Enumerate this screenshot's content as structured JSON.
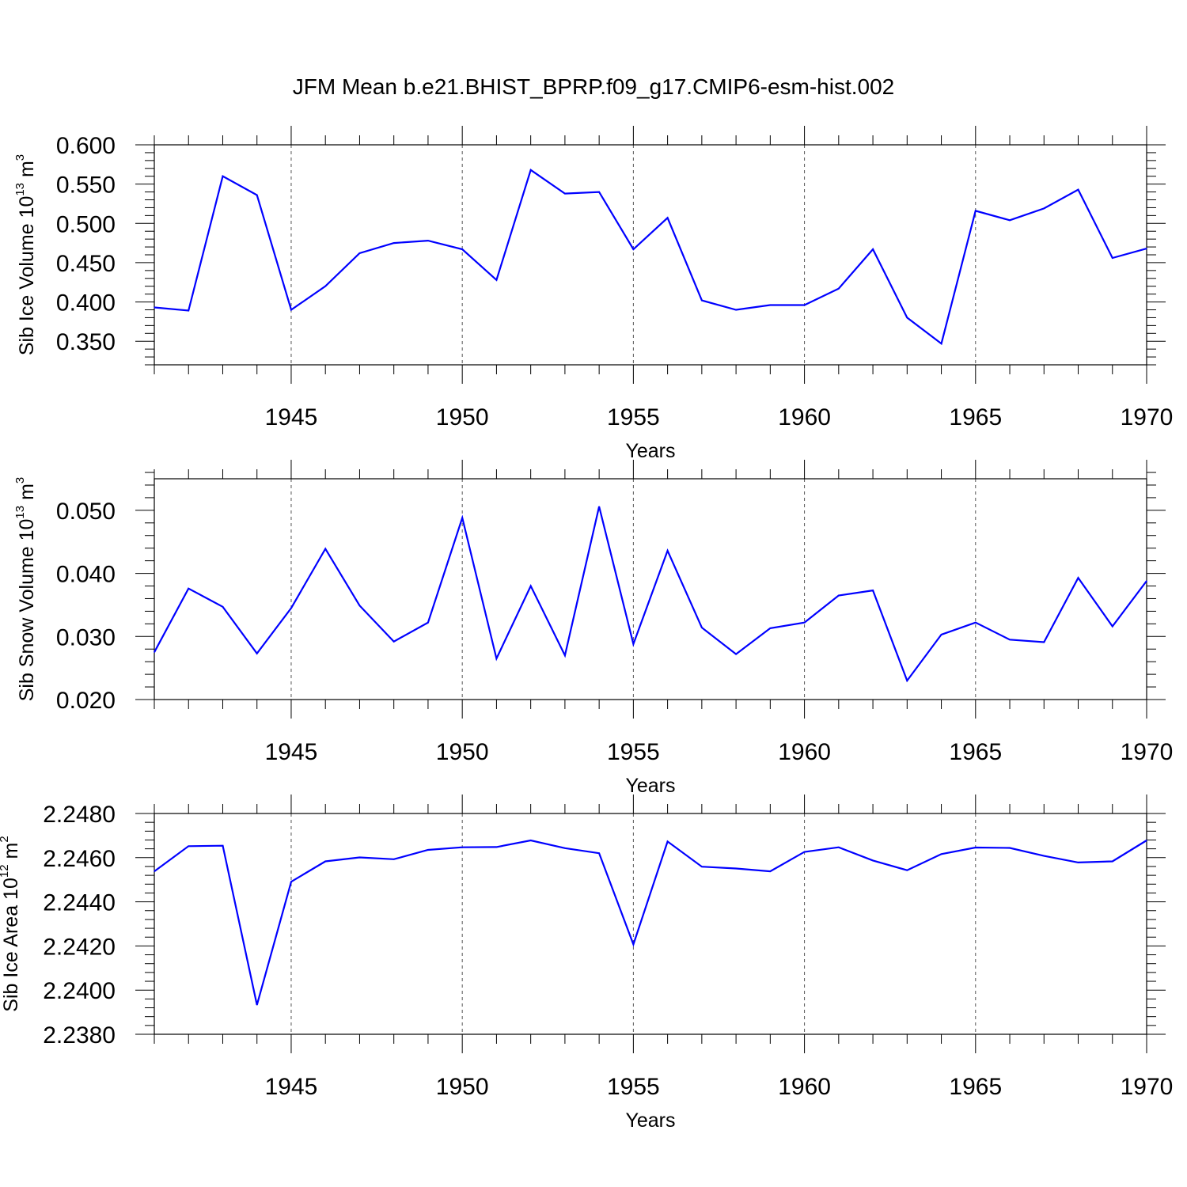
{
  "title": "JFM Mean b.e21.BHIST_BPRP.f09_g17.CMIP6-esm-hist.002",
  "style": {
    "line_color": "#0000ff",
    "grid_color": "#555555",
    "axis_color": "#000000"
  },
  "chart_data": [
    {
      "type": "line",
      "xlabel": "Years",
      "ylabel_parts": [
        "Sib Ice Volume 10",
        "13",
        " m",
        "3"
      ],
      "xlim": [
        1941,
        1970
      ],
      "ylim": [
        0.32,
        0.6
      ],
      "yticks": [
        0.35,
        0.4,
        0.45,
        0.5,
        0.55,
        0.6
      ],
      "ytick_labels": [
        "0.350",
        "0.400",
        "0.450",
        "0.500",
        "0.550",
        "0.600"
      ],
      "yminor_step": 0.01,
      "xticks": [
        1945,
        1950,
        1955,
        1960,
        1965,
        1970
      ],
      "xtick_labels": [
        "1945",
        "1950",
        "1955",
        "1960",
        "1965",
        "1970"
      ],
      "grid": "vertical dashed at major x ticks",
      "series": [
        {
          "x": [
            1941,
            1942,
            1943,
            1944,
            1945,
            1946,
            1947,
            1948,
            1949,
            1950,
            1951,
            1952,
            1953,
            1954,
            1955,
            1956,
            1957,
            1958,
            1959,
            1960,
            1961,
            1962,
            1963,
            1964,
            1965,
            1966,
            1967,
            1968,
            1969,
            1970
          ],
          "values": [
            0.393,
            0.389,
            0.56,
            0.536,
            0.39,
            0.42,
            0.462,
            0.475,
            0.478,
            0.467,
            0.428,
            0.568,
            0.538,
            0.54,
            0.467,
            0.507,
            0.402,
            0.39,
            0.396,
            0.396,
            0.417,
            0.467,
            0.38,
            0.347,
            0.516,
            0.504,
            0.519,
            0.543,
            0.456,
            0.468
          ]
        }
      ]
    },
    {
      "type": "line",
      "xlabel": "Years",
      "ylabel_parts": [
        "Sib Snow Volume 10",
        "13",
        " m",
        "3"
      ],
      "xlim": [
        1941,
        1970
      ],
      "ylim": [
        0.02,
        0.055
      ],
      "yticks": [
        0.02,
        0.03,
        0.04,
        0.05
      ],
      "ytick_labels": [
        "0.020",
        "0.030",
        "0.040",
        "0.050"
      ],
      "yminor_step": 0.002,
      "xticks": [
        1945,
        1950,
        1955,
        1960,
        1965,
        1970
      ],
      "xtick_labels": [
        "1945",
        "1950",
        "1955",
        "1960",
        "1965",
        "1970"
      ],
      "grid": "vertical dashed at major x ticks",
      "series": [
        {
          "x": [
            1941,
            1942,
            1943,
            1944,
            1945,
            1946,
            1947,
            1948,
            1949,
            1950,
            1951,
            1952,
            1953,
            1954,
            1955,
            1956,
            1957,
            1958,
            1959,
            1960,
            1961,
            1962,
            1963,
            1964,
            1965,
            1966,
            1967,
            1968,
            1969,
            1970
          ],
          "values": [
            0.0275,
            0.0376,
            0.0347,
            0.0273,
            0.0345,
            0.0439,
            0.0349,
            0.0292,
            0.0322,
            0.0488,
            0.0265,
            0.038,
            0.027,
            0.0506,
            0.0288,
            0.0436,
            0.0314,
            0.0272,
            0.0313,
            0.0322,
            0.0365,
            0.0373,
            0.023,
            0.0303,
            0.0322,
            0.0295,
            0.0291,
            0.0393,
            0.0316,
            0.0388
          ]
        }
      ]
    },
    {
      "type": "line",
      "xlabel": "Years",
      "ylabel_parts": [
        "Sib Ice Area 10",
        "12",
        " m",
        "2"
      ],
      "xlim": [
        1941,
        1970
      ],
      "ylim": [
        2.238,
        2.248
      ],
      "yticks": [
        2.238,
        2.24,
        2.242,
        2.244,
        2.246,
        2.248
      ],
      "ytick_labels": [
        "2.2380",
        "2.2400",
        "2.2420",
        "2.2440",
        "2.2460",
        "2.2480"
      ],
      "yminor_step": 0.0004,
      "xticks": [
        1945,
        1950,
        1955,
        1960,
        1965,
        1970
      ],
      "xtick_labels": [
        "1945",
        "1950",
        "1955",
        "1960",
        "1965",
        "1970"
      ],
      "grid": "vertical dashed at major x ticks",
      "series": [
        {
          "x": [
            1941,
            1942,
            1943,
            1944,
            1945,
            1946,
            1947,
            1948,
            1949,
            1950,
            1951,
            1952,
            1953,
            1954,
            1955,
            1956,
            1957,
            1958,
            1959,
            1960,
            1961,
            1962,
            1963,
            1964,
            1965,
            1966,
            1967,
            1968,
            1969,
            1970
          ],
          "values": [
            2.24538,
            2.24652,
            2.24654,
            2.23933,
            2.24491,
            2.24583,
            2.24601,
            2.24593,
            2.24635,
            2.24647,
            2.24648,
            2.24678,
            2.24643,
            2.2462,
            2.24207,
            2.24673,
            2.24559,
            2.24551,
            2.24538,
            2.24626,
            2.24647,
            2.24587,
            2.24543,
            2.24616,
            2.24646,
            2.24644,
            2.24608,
            2.24578,
            2.24583,
            2.24678
          ]
        }
      ]
    }
  ]
}
